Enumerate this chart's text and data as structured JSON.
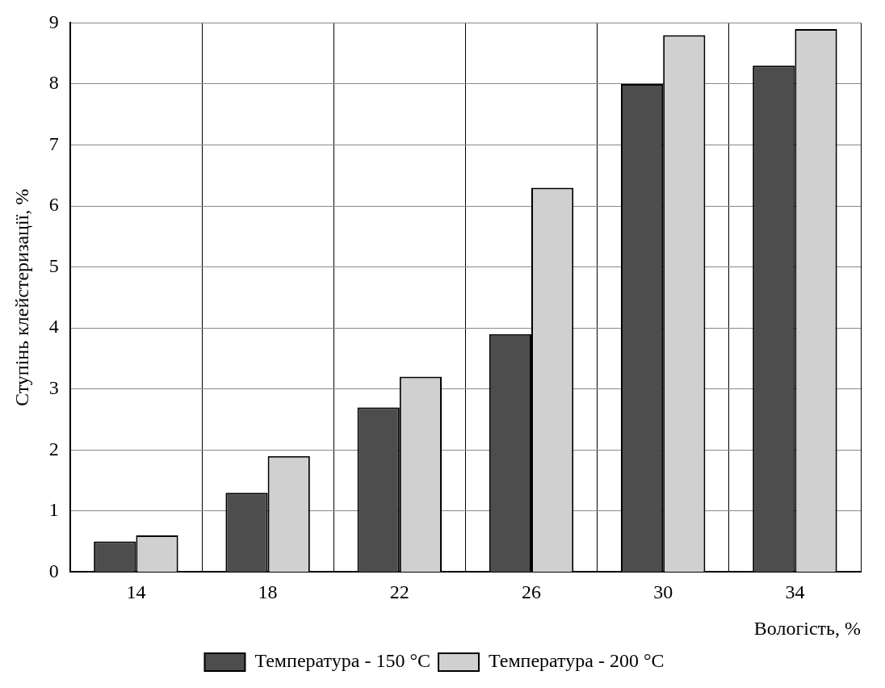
{
  "chart_data": {
    "type": "bar",
    "xlabel": "Вологість, %",
    "ylabel": "Ступінь клейстеризації, %",
    "categories": [
      "14",
      "18",
      "22",
      "26",
      "30",
      "34"
    ],
    "series": [
      {
        "name": "Температура - 150 °C",
        "color": "#4d4d4d",
        "values": [
          0.5,
          1.3,
          2.7,
          3.9,
          8.0,
          8.3
        ]
      },
      {
        "name": "Температура - 200 °C",
        "color": "#d0d0d0",
        "values": [
          0.6,
          1.9,
          3.2,
          6.3,
          8.8,
          8.9
        ]
      }
    ],
    "ylim": [
      0,
      9
    ],
    "yticks": [
      0,
      1,
      2,
      3,
      4,
      5,
      6,
      7,
      8,
      9
    ],
    "grid": true,
    "legend": "bottom"
  }
}
